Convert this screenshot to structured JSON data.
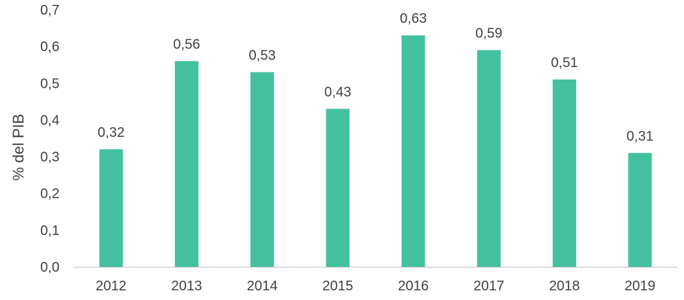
{
  "chart_data": {
    "type": "bar",
    "categories": [
      "2012",
      "2013",
      "2014",
      "2015",
      "2016",
      "2017",
      "2018",
      "2019"
    ],
    "values": [
      0.32,
      0.56,
      0.53,
      0.43,
      0.63,
      0.59,
      0.51,
      0.31
    ],
    "value_labels": [
      "0,32",
      "0,56",
      "0,53",
      "0,43",
      "0,63",
      "0,59",
      "0,51",
      "0,31"
    ],
    "title": "",
    "xlabel": "",
    "ylabel": "% del PIB",
    "ylim": [
      0,
      0.7
    ],
    "yticks": [
      0,
      0.1,
      0.2,
      0.3,
      0.4,
      0.5,
      0.6,
      0.7
    ],
    "ytick_labels": [
      "0,0",
      "0,1",
      "0,2",
      "0,3",
      "0,4",
      "0,5",
      "0,6",
      "0,7"
    ],
    "grid": false,
    "legend": "none",
    "colors": {
      "bar": "#43C19F",
      "axis": "#BFBFBF",
      "text": "#404040"
    }
  }
}
